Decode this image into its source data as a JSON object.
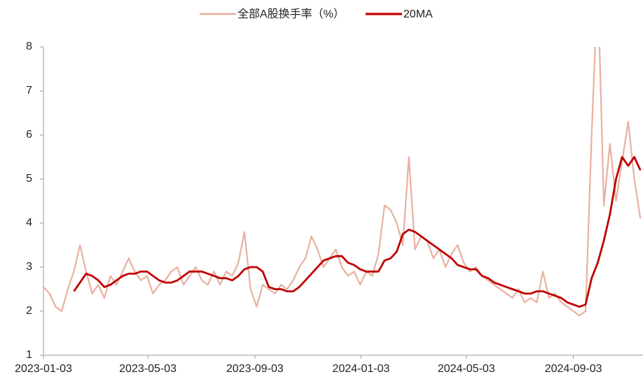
{
  "chart_data": {
    "type": "line",
    "x": [
      "2023-01-03",
      "2023-01-10",
      "2023-01-17",
      "2023-01-24",
      "2023-01-31",
      "2023-02-07",
      "2023-02-14",
      "2023-02-21",
      "2023-02-28",
      "2023-03-07",
      "2023-03-14",
      "2023-03-21",
      "2023-03-28",
      "2023-04-04",
      "2023-04-11",
      "2023-04-18",
      "2023-04-25",
      "2023-05-02",
      "2023-05-09",
      "2023-05-16",
      "2023-05-23",
      "2023-05-30",
      "2023-06-06",
      "2023-06-13",
      "2023-06-20",
      "2023-06-27",
      "2023-07-04",
      "2023-07-11",
      "2023-07-18",
      "2023-07-25",
      "2023-08-01",
      "2023-08-08",
      "2023-08-15",
      "2023-08-22",
      "2023-08-29",
      "2023-09-05",
      "2023-09-12",
      "2023-09-19",
      "2023-09-26",
      "2023-10-03",
      "2023-10-10",
      "2023-10-17",
      "2023-10-24",
      "2023-10-31",
      "2023-11-07",
      "2023-11-14",
      "2023-11-21",
      "2023-11-28",
      "2023-12-05",
      "2023-12-12",
      "2023-12-19",
      "2023-12-26",
      "2024-01-02",
      "2024-01-09",
      "2024-01-16",
      "2024-01-23",
      "2024-01-30",
      "2024-02-06",
      "2024-02-13",
      "2024-02-20",
      "2024-02-27",
      "2024-03-05",
      "2024-03-12",
      "2024-03-19",
      "2024-03-26",
      "2024-04-02",
      "2024-04-09",
      "2024-04-16",
      "2024-04-23",
      "2024-04-30",
      "2024-05-07",
      "2024-05-14",
      "2024-05-21",
      "2024-05-28",
      "2024-06-04",
      "2024-06-11",
      "2024-06-18",
      "2024-06-25",
      "2024-07-02",
      "2024-07-09",
      "2024-07-16",
      "2024-07-23",
      "2024-07-30",
      "2024-08-06",
      "2024-08-13",
      "2024-08-20",
      "2024-08-27",
      "2024-09-03",
      "2024-09-10",
      "2024-09-17",
      "2024-09-24",
      "2024-10-01",
      "2024-10-08",
      "2024-10-15",
      "2024-10-22",
      "2024-10-29",
      "2024-11-05",
      "2024-11-12",
      "2024-11-19"
    ],
    "series": [
      {
        "name": "全部A股换手率（%）",
        "color": "#e8b0a0",
        "width": 2.2,
        "values": [
          2.55,
          2.4,
          2.1,
          2.0,
          2.5,
          2.9,
          3.5,
          2.9,
          2.4,
          2.6,
          2.3,
          2.8,
          2.6,
          2.9,
          3.2,
          2.9,
          2.7,
          2.8,
          2.4,
          2.6,
          2.7,
          2.9,
          3.0,
          2.6,
          2.8,
          3.0,
          2.7,
          2.6,
          2.9,
          2.6,
          2.9,
          2.8,
          3.1,
          3.8,
          2.5,
          2.1,
          2.6,
          2.5,
          2.4,
          2.6,
          2.5,
          2.7,
          3.0,
          3.2,
          3.7,
          3.4,
          3.0,
          3.2,
          3.4,
          3.0,
          2.8,
          2.9,
          2.6,
          2.9,
          2.8,
          3.3,
          4.4,
          4.3,
          4.0,
          3.5,
          5.5,
          3.4,
          3.7,
          3.6,
          3.2,
          3.4,
          3.0,
          3.3,
          3.5,
          3.1,
          2.9,
          3.0,
          2.8,
          2.7,
          2.6,
          2.5,
          2.4,
          2.3,
          2.5,
          2.2,
          2.3,
          2.2,
          2.9,
          2.3,
          2.4,
          2.2,
          2.1,
          2.0,
          1.9,
          2.0,
          6.0,
          9.5,
          4.4,
          5.8,
          4.5,
          5.4,
          6.3,
          5.0,
          4.1
        ]
      },
      {
        "name": "20MA",
        "color": "#c00000",
        "width": 2.8,
        "values": [
          null,
          null,
          null,
          null,
          null,
          2.45,
          2.65,
          2.85,
          2.8,
          2.7,
          2.55,
          2.6,
          2.7,
          2.8,
          2.85,
          2.85,
          2.9,
          2.9,
          2.8,
          2.7,
          2.65,
          2.65,
          2.7,
          2.8,
          2.9,
          2.9,
          2.9,
          2.85,
          2.8,
          2.75,
          2.75,
          2.7,
          2.8,
          2.95,
          3.0,
          3.0,
          2.9,
          2.55,
          2.5,
          2.5,
          2.45,
          2.45,
          2.55,
          2.7,
          2.85,
          3.0,
          3.15,
          3.2,
          3.25,
          3.25,
          3.1,
          3.05,
          2.95,
          2.9,
          2.9,
          2.9,
          3.15,
          3.2,
          3.35,
          3.75,
          3.85,
          3.8,
          3.7,
          3.6,
          3.5,
          3.4,
          3.3,
          3.2,
          3.05,
          3.0,
          2.95,
          2.95,
          2.8,
          2.75,
          2.65,
          2.6,
          2.55,
          2.5,
          2.45,
          2.4,
          2.4,
          2.45,
          2.45,
          2.4,
          2.35,
          2.3,
          2.2,
          2.15,
          2.1,
          2.15,
          2.75,
          3.1,
          3.6,
          4.2,
          5.0,
          5.5,
          5.3,
          5.5,
          5.2
        ]
      }
    ],
    "xlim": [
      "2023-01-03",
      "2024-11-22"
    ],
    "xticks": [
      "2023-01-03",
      "2023-05-03",
      "2023-09-03",
      "2024-01-03",
      "2024-05-03",
      "2024-09-03"
    ],
    "ylim": [
      1,
      8
    ],
    "yticks": [
      1,
      2,
      3,
      4,
      5,
      6,
      7,
      8
    ],
    "grid": false,
    "legend": "top"
  }
}
